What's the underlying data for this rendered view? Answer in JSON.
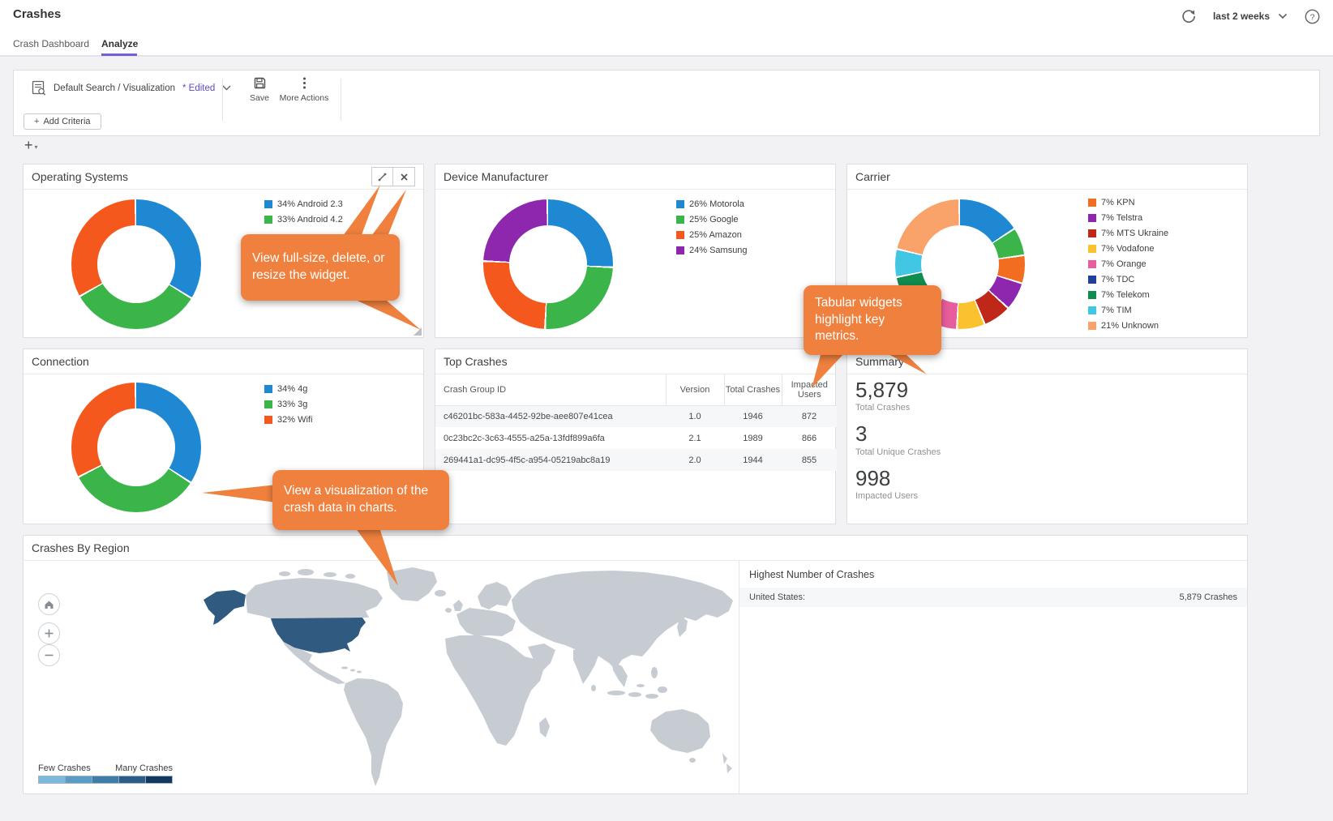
{
  "page": {
    "title": "Crashes",
    "time_range": "last 2 weeks"
  },
  "tabs": [
    {
      "label": "Crash Dashboard",
      "active": false
    },
    {
      "label": "Analyze",
      "active": true
    }
  ],
  "toolbar": {
    "search_label": "Default Search / Visualization",
    "edited_flag": "* Edited",
    "save_label": "Save",
    "more_actions_label": "More Actions",
    "add_criteria_label": "Add Criteria"
  },
  "icons": {
    "plus": "+",
    "caret_down": "▾"
  },
  "callouts": {
    "widget_controls": "View full-size, delete, or resize the widget.",
    "tabular": "Tabular widgets highlight key metrics.",
    "visualization": "View a visualization of the crash data in charts."
  },
  "colors": {
    "accent_purple": "#6f60d8",
    "callout_orange": "#ef803e",
    "map_country": "#c7ccd2",
    "map_highlight": "#305a80"
  },
  "chart_data": [
    {
      "type": "pie",
      "title": "Operating Systems",
      "legend_position": "right",
      "slices": [
        {
          "label": "Android 2.3",
          "pct": 34,
          "color": "#1e88d2",
          "in_legend": true
        },
        {
          "label": "Android 4.2",
          "pct": 33,
          "color": "#3bb54a",
          "in_legend": true
        },
        {
          "label": "",
          "pct": 33,
          "color": "#f4581c",
          "in_legend": false
        }
      ]
    },
    {
      "type": "pie",
      "title": "Device Manufacturer",
      "legend_position": "right",
      "slices": [
        {
          "label": "Motorola",
          "pct": 26,
          "color": "#1e88d2",
          "in_legend": true
        },
        {
          "label": "Google",
          "pct": 25,
          "color": "#3bb54a",
          "in_legend": true
        },
        {
          "label": "Amazon",
          "pct": 25,
          "color": "#f4581c",
          "in_legend": true
        },
        {
          "label": "Samsung",
          "pct": 24,
          "color": "#8d27ad",
          "in_legend": true
        }
      ]
    },
    {
      "type": "pie",
      "title": "Carrier",
      "legend_position": "right",
      "slices": [
        {
          "label": "",
          "pct": 16,
          "color": "#1e88d2",
          "in_legend": false
        },
        {
          "label": "",
          "pct": 7,
          "color": "#3bb54a",
          "in_legend": false
        },
        {
          "label": "KPN",
          "pct": 7,
          "color": "#f36d21",
          "in_legend": true
        },
        {
          "label": "Telstra",
          "pct": 7,
          "color": "#8d27ad",
          "in_legend": true
        },
        {
          "label": "MTS Ukraine",
          "pct": 7,
          "color": "#bf2718",
          "in_legend": true
        },
        {
          "label": "Vodafone",
          "pct": 7,
          "color": "#f9c22e",
          "in_legend": true
        },
        {
          "label": "Orange",
          "pct": 7,
          "color": "#e85d9e",
          "in_legend": true
        },
        {
          "label": "TDC",
          "pct": 7,
          "color": "#21409a",
          "in_legend": true
        },
        {
          "label": "Telekom",
          "pct": 7,
          "color": "#108c4f",
          "in_legend": true
        },
        {
          "label": "TIM",
          "pct": 7,
          "color": "#41c6e3",
          "in_legend": true
        },
        {
          "label": "Unknown",
          "pct": 21,
          "color": "#f9a269",
          "in_legend": true
        }
      ]
    },
    {
      "type": "pie",
      "title": "Connection",
      "legend_position": "right",
      "slices": [
        {
          "label": "4g",
          "pct": 34,
          "color": "#1e88d2",
          "in_legend": true
        },
        {
          "label": "3g",
          "pct": 33,
          "color": "#3bb54a",
          "in_legend": true
        },
        {
          "label": "Wifi",
          "pct": 32,
          "color": "#f4581c",
          "in_legend": true
        }
      ]
    },
    {
      "type": "table",
      "title": "Top Crashes",
      "columns": [
        "Crash Group ID",
        "Version",
        "Total Crashes",
        "Impacted Users"
      ],
      "rows": [
        [
          "c46201bc-583a-4452-92be-aee807e41cea",
          "1.0",
          "1946",
          "872"
        ],
        [
          "0c23bc2c-3c63-4555-a25a-13fdf899a6fa",
          "2.1",
          "1989",
          "866"
        ],
        [
          "269441a1-dc95-4f5c-a954-05219abc8a19",
          "2.0",
          "1944",
          "855"
        ]
      ]
    },
    {
      "type": "summary",
      "title": "Summary",
      "stats": [
        {
          "value": "5,879",
          "label": "Total Crashes"
        },
        {
          "value": "3",
          "label": "Total Unique Crashes"
        },
        {
          "value": "998",
          "label": "Impacted Users"
        }
      ]
    },
    {
      "type": "map",
      "title": "Crashes By Region",
      "highlighted_region": "United States",
      "legend": {
        "low": "Few Crashes",
        "high": "Many Crashes",
        "colors": [
          "#7db9dc",
          "#5a9cc5",
          "#3f7ca8",
          "#2a5d88",
          "#14395f"
        ]
      },
      "side_panel": {
        "title": "Highest Number of Crashes",
        "rows": [
          {
            "region": "United States:",
            "value": "5,879 Crashes"
          }
        ]
      }
    }
  ]
}
